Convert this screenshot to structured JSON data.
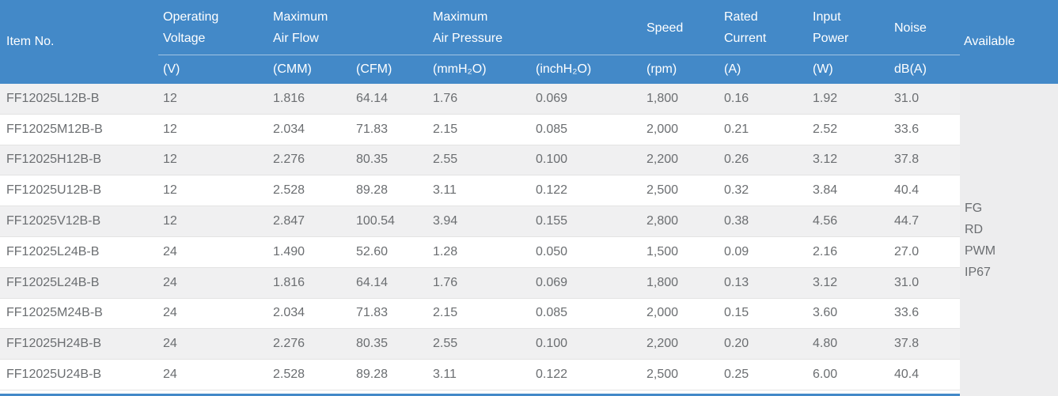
{
  "colors": {
    "header_bg": "#4389c8",
    "header_text": "#ffffff",
    "header_divider": "rgba(255,255,255,0.5)",
    "row_stripe": "#f0f0f1",
    "row_white": "#ffffff",
    "row_divider": "#e3e3e3",
    "available_bg": "#ededee",
    "body_text": "#6b6e71"
  },
  "header": {
    "item_label": "Item No.",
    "available_label": "Available",
    "columns": [
      {
        "id": "operating-voltage",
        "lines": [
          "Operating",
          "Voltage"
        ],
        "unit": "(V)"
      },
      {
        "id": "max-air-flow-cmm",
        "lines": [
          "Maximum",
          "Air Flow"
        ],
        "unit": "(CMM)"
      },
      {
        "id": "max-air-flow-cfm",
        "lines": [],
        "unit": "(CFM)"
      },
      {
        "id": "max-air-pressure-mmh2o",
        "lines": [
          "Maximum",
          "Air Pressure"
        ],
        "unit": "(mmH₂O)"
      },
      {
        "id": "max-air-pressure-inchh2o",
        "lines": [],
        "unit": "(inchH₂O)"
      },
      {
        "id": "speed",
        "lines": [
          "Speed"
        ],
        "unit": "(rpm)"
      },
      {
        "id": "rated-current",
        "lines": [
          "Rated",
          "Current"
        ],
        "unit": "(A)"
      },
      {
        "id": "input-power",
        "lines": [
          "Input",
          "Power"
        ],
        "unit": "(W)"
      },
      {
        "id": "noise",
        "lines": [
          "Noise"
        ],
        "unit": "dB(A)"
      }
    ]
  },
  "table": {
    "rows": [
      {
        "cells": [
          "FF12025L12B-B",
          "12",
          "1.816",
          "64.14",
          "1.76",
          "0.069",
          "1,800",
          "0.16",
          "1.92",
          "31.0"
        ]
      },
      {
        "cells": [
          "FF12025M12B-B",
          "12",
          "2.034",
          "71.83",
          "2.15",
          "0.085",
          "2,000",
          "0.21",
          "2.52",
          "33.6"
        ]
      },
      {
        "cells": [
          "FF12025H12B-B",
          "12",
          "2.276",
          "80.35",
          "2.55",
          "0.100",
          "2,200",
          "0.26",
          "3.12",
          "37.8"
        ]
      },
      {
        "cells": [
          "FF12025U12B-B",
          "12",
          "2.528",
          "89.28",
          "3.11",
          "0.122",
          "2,500",
          "0.32",
          "3.84",
          "40.4"
        ]
      },
      {
        "cells": [
          "FF12025V12B-B",
          "12",
          "2.847",
          "100.54",
          "3.94",
          "0.155",
          "2,800",
          "0.38",
          "4.56",
          "44.7"
        ]
      },
      {
        "cells": [
          "FF12025L24B-B",
          "24",
          "1.490",
          "52.60",
          "1.28",
          "0.050",
          "1,500",
          "0.09",
          "2.16",
          "27.0"
        ]
      },
      {
        "cells": [
          "FF12025L24B-B",
          "24",
          "1.816",
          "64.14",
          "1.76",
          "0.069",
          "1,800",
          "0.13",
          "3.12",
          "31.0"
        ]
      },
      {
        "cells": [
          "FF12025M24B-B",
          "24",
          "2.034",
          "71.83",
          "2.15",
          "0.085",
          "2,000",
          "0.15",
          "3.60",
          "33.6"
        ]
      },
      {
        "cells": [
          "FF12025H24B-B",
          "24",
          "2.276",
          "80.35",
          "2.55",
          "0.100",
          "2,200",
          "0.20",
          "4.80",
          "37.8"
        ]
      },
      {
        "cells": [
          "FF12025U24B-B",
          "24",
          "2.528",
          "89.28",
          "3.11",
          "0.122",
          "2,500",
          "0.25",
          "6.00",
          "40.4"
        ]
      }
    ],
    "available_options": [
      "FG",
      "RD",
      "PWM",
      "IP67"
    ]
  }
}
